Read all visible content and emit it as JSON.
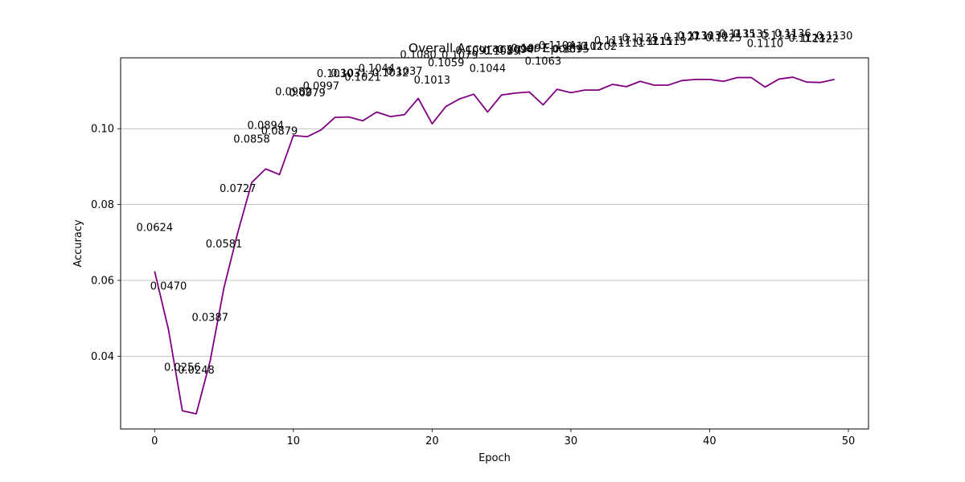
{
  "chart_data": {
    "type": "line",
    "title": "Overall Accuracy per Epoch",
    "xlabel": "Epoch",
    "ylabel": "Accuracy",
    "xlim": [
      -2.45,
      51.45
    ],
    "ylim": [
      0.0208,
      0.1187
    ],
    "xticks": [
      0,
      10,
      20,
      30,
      40,
      50
    ],
    "xtick_labels": [
      "0",
      "10",
      "20",
      "30",
      "40",
      "50"
    ],
    "yticks": [
      0.04,
      0.06,
      0.08,
      0.1
    ],
    "ytick_labels": [
      "0.04",
      "0.06",
      "0.08",
      "0.10"
    ],
    "grid": "horizontal",
    "series": [
      {
        "color": "#800080",
        "x": [
          0,
          1,
          2,
          3,
          4,
          5,
          6,
          7,
          8,
          9,
          10,
          11,
          12,
          13,
          14,
          15,
          16,
          17,
          18,
          19,
          20,
          21,
          22,
          23,
          24,
          25,
          26,
          27,
          28,
          29,
          30,
          31,
          32,
          33,
          34,
          35,
          36,
          37,
          38,
          39,
          40,
          41,
          42,
          43,
          44,
          45,
          46,
          47,
          48,
          49
        ],
        "values": [
          0.0624,
          0.047,
          0.0256,
          0.0248,
          0.0387,
          0.0581,
          0.0727,
          0.0858,
          0.0894,
          0.0879,
          0.0982,
          0.0979,
          0.0997,
          0.103,
          0.1031,
          0.1021,
          0.1044,
          0.1032,
          0.1037,
          0.108,
          0.1013,
          0.1059,
          0.1079,
          0.1091,
          0.1044,
          0.1089,
          0.1094,
          0.1097,
          0.1063,
          0.1104,
          0.1095,
          0.1102,
          0.1102,
          0.1117,
          0.1111,
          0.1125,
          0.1115,
          0.1115,
          0.1127,
          0.113,
          0.113,
          0.1125,
          0.1135,
          0.1135,
          0.111,
          0.1131,
          0.1136,
          0.1123,
          0.1122,
          0.113
        ],
        "labels": [
          "0.0624",
          "0.0470",
          "0.0256",
          "0.0248",
          "0.0387",
          "0.0581",
          "0.0727",
          "0.0858",
          "0.0894",
          "0.0879",
          "0.0982",
          "0.0979",
          "0.0997",
          "0.1030",
          "0.1031",
          "0.1021",
          "0.1044",
          "0.1032",
          "0.1037",
          "0.1080",
          "0.1013",
          "0.1059",
          "0.1079",
          "0.1091",
          "0.1044",
          "0.1089",
          "0.1094",
          "0.1097",
          "0.1063",
          "0.1104",
          "0.1095",
          "0.1102",
          "0.1102",
          "0.1117",
          "0.1111",
          "0.1125",
          "0.1115",
          "0.1115",
          "0.1127",
          "0.1130",
          "0.1130",
          "0.1125",
          "0.1135",
          "0.1135",
          "0.1110",
          "0.1131",
          "0.1136",
          "0.1123",
          "0.1122",
          "0.1130"
        ]
      }
    ]
  }
}
